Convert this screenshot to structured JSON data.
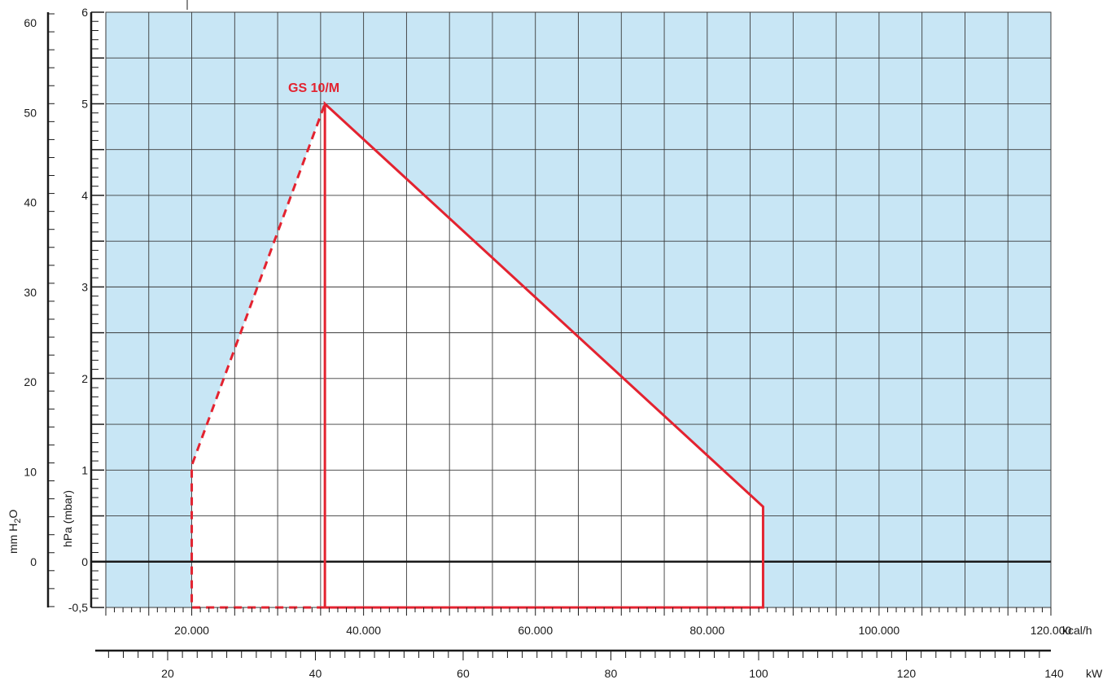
{
  "chart_data": {
    "type": "area",
    "title": "",
    "series": [
      {
        "name": "GS 10/M",
        "solid_boundary": [
          [
            35500,
            -0.5
          ],
          [
            35500,
            5.0
          ],
          [
            86500,
            0.6
          ],
          [
            86500,
            -0.5
          ],
          [
            35500,
            -0.5
          ]
        ],
        "dashed_boundary": [
          [
            35500,
            -0.5
          ],
          [
            20000,
            -0.5
          ],
          [
            20000,
            1.05
          ],
          [
            35500,
            5.0
          ]
        ]
      }
    ],
    "model_label": "GS 10/M",
    "x_axis_kcal": {
      "label": "kcal/h",
      "range": [
        10000,
        120000
      ],
      "major_ticks": [
        20000,
        40000,
        60000,
        80000,
        100000,
        120000
      ],
      "tick_labels": [
        "20.000",
        "40.000",
        "60.000",
        "80.000",
        "100.000",
        "120.000"
      ]
    },
    "x_axis_kw": {
      "label": "kW",
      "range_kcal": [
        10000,
        145500
      ],
      "major_ticks": [
        20,
        40,
        60,
        80,
        100,
        120,
        140
      ],
      "tick_labels": [
        "20",
        "40",
        "60",
        "80",
        "100",
        "120",
        "140"
      ]
    },
    "y_axis_hpa": {
      "label": "hPa (mbar)",
      "range": [
        -0.5,
        6
      ],
      "major_ticks": [
        -0.5,
        0,
        1,
        2,
        3,
        4,
        5,
        6
      ],
      "tick_labels": [
        "-0,5",
        "0",
        "1",
        "2",
        "3",
        "4",
        "5",
        "6"
      ]
    },
    "y_axis_mmh2o": {
      "label_main": "mm H",
      "label_sub": "2",
      "label_end": "O",
      "major_ticks": [
        0,
        10,
        20,
        30,
        40,
        50,
        60
      ],
      "tick_labels": [
        "0",
        "10",
        "20",
        "30",
        "40",
        "50",
        "60"
      ]
    },
    "grid": true,
    "colors": {
      "background": "#c8e6f5",
      "envelope_fill": "#ffffff",
      "envelope_stroke": "#e32330",
      "grid": "#3a3a3a",
      "axis": "#1a1a1a",
      "model_label": "#e32330"
    }
  }
}
